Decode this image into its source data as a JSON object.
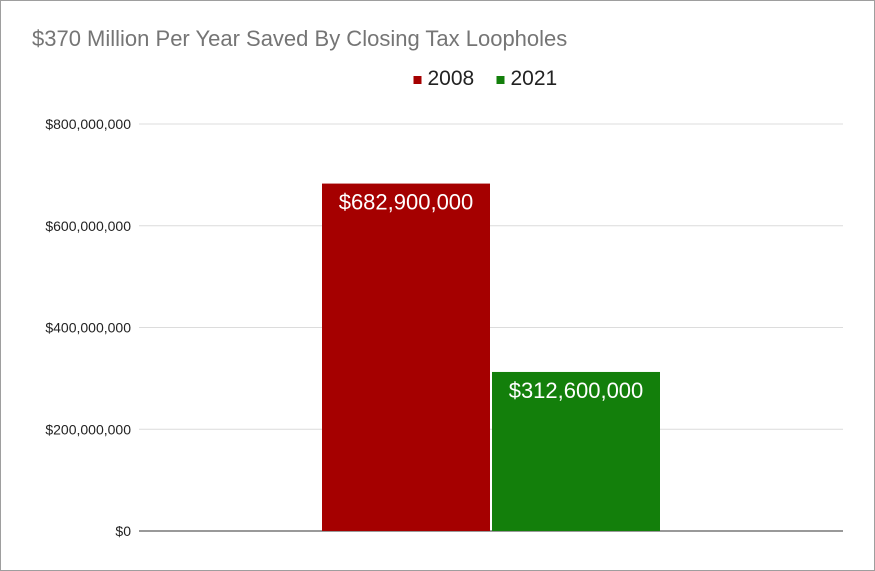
{
  "chart_data": {
    "type": "bar",
    "title": "$370 Million Per Year Saved By Closing Tax Loopholes",
    "xlabel": "",
    "ylabel": "",
    "ylim": [
      0,
      800000000
    ],
    "yticks": [
      0,
      200000000,
      400000000,
      600000000,
      800000000
    ],
    "ytick_labels": [
      "$0",
      "$200,000,000",
      "$400,000,000",
      "$600,000,000",
      "$800,000,000"
    ],
    "grid": true,
    "legend_position": "top",
    "series": [
      {
        "name": "2008",
        "values": [
          682900000
        ],
        "color": "#a50000",
        "data_label": "$682,900,000"
      },
      {
        "name": "2021",
        "values": [
          312600000
        ],
        "color": "#137f0b",
        "data_label": "$312,600,000"
      }
    ]
  }
}
